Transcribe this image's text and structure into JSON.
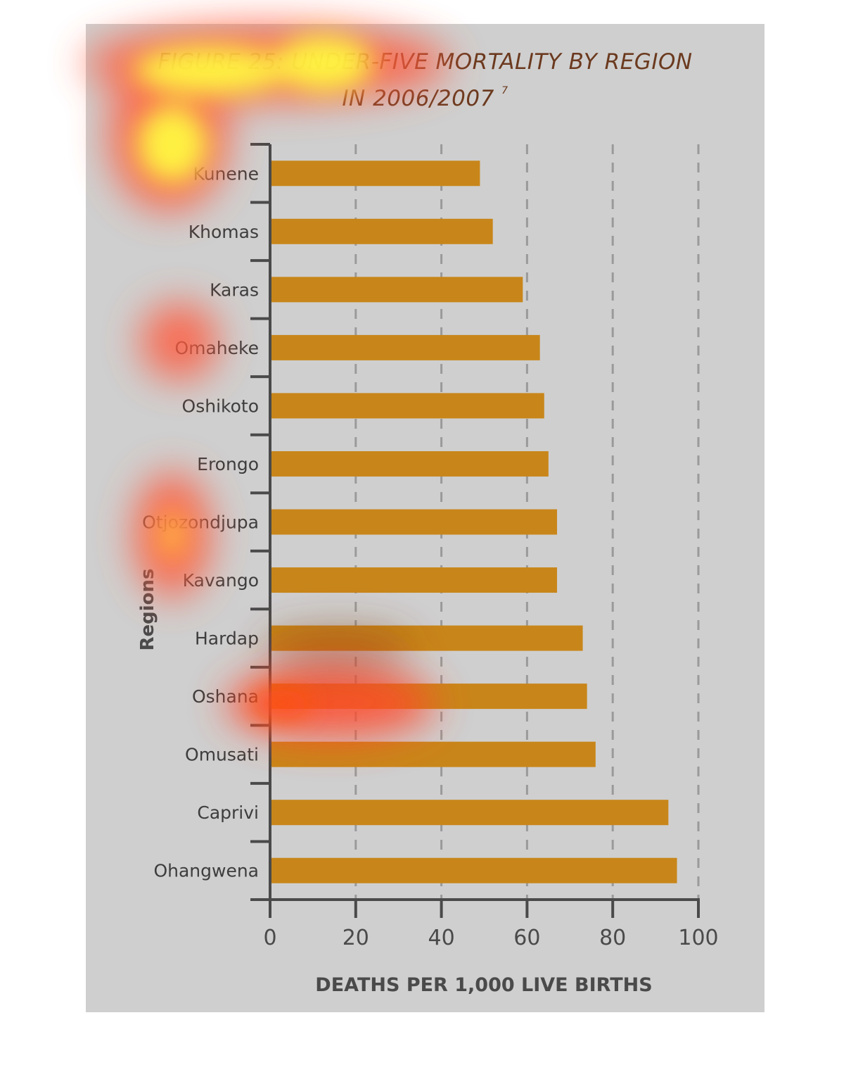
{
  "chart_data": {
    "type": "bar",
    "orientation": "horizontal",
    "title_line1": "FIGURE 25: UNDER-FIVE MORTALITY BY REGION",
    "title_line2": "IN 2006/2007",
    "title_superscript": "7",
    "xlabel": "DEATHS PER 1,000 LIVE BIRTHS",
    "ylabel": "Regions",
    "xlim": [
      0,
      100
    ],
    "xticks": [
      "0",
      "20",
      "40",
      "60",
      "80",
      "100"
    ],
    "gridlines": "dashed vertical at 20, 40, 60, 80, 100",
    "categories": [
      "Kunene",
      "Khomas",
      "Karas",
      "Omaheke",
      "Oshikoto",
      "Erongo",
      "Otjozondjupa",
      "Kavango",
      "Hardap",
      "Oshana",
      "Omusati",
      "Caprivi",
      "Ohangwena"
    ],
    "values": [
      49,
      52,
      59,
      63,
      64,
      65,
      67,
      67,
      73,
      74,
      76,
      93,
      95
    ],
    "bar_color": "#c8861a",
    "background_color": "#cfcfcf",
    "heatmap_overlay": true
  }
}
